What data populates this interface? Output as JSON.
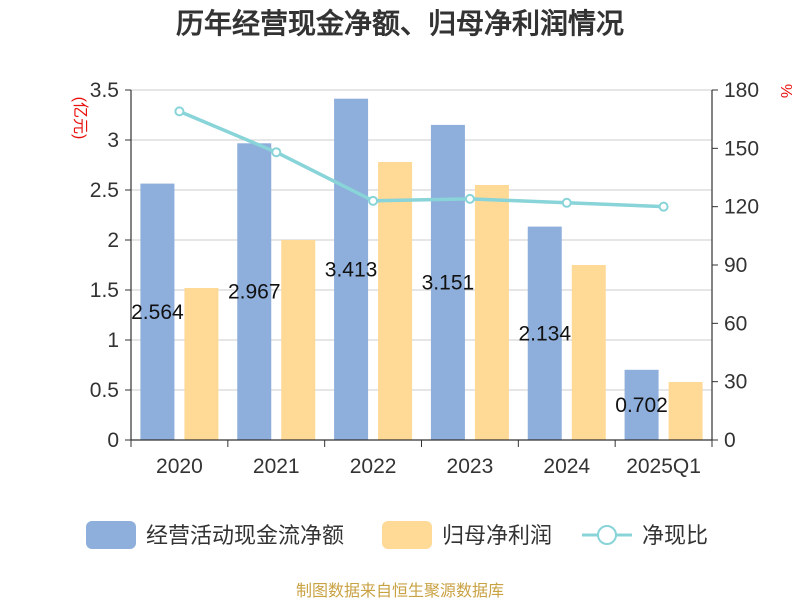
{
  "chart_data": {
    "type": "bar",
    "title": "历年经营现金净额、归母净利润情况",
    "categories": [
      "2020",
      "2021",
      "2022",
      "2023",
      "2024",
      "2025Q1"
    ],
    "series": [
      {
        "name": "经营活动现金流净额",
        "type": "bar",
        "axis": "left",
        "color": "#8eaedb",
        "values": [
          2.564,
          2.967,
          3.413,
          3.151,
          2.134,
          0.702
        ]
      },
      {
        "name": "归母净利润",
        "type": "bar",
        "axis": "left",
        "color": "#ffd996",
        "values": [
          1.52,
          2.0,
          2.78,
          2.55,
          1.75,
          0.58
        ]
      },
      {
        "name": "净现比",
        "type": "line",
        "axis": "right",
        "color": "#88d4d8",
        "values": [
          169,
          148,
          123,
          124,
          122,
          120
        ]
      }
    ],
    "data_labels": [
      "2.564",
      "2.967",
      "3.413",
      "3.151",
      "2.134",
      "0.702"
    ],
    "y_left": {
      "unit": "(亿元)",
      "ylim": [
        0,
        3.5
      ],
      "ticks": [
        "0",
        "0.5",
        "1",
        "1.5",
        "2",
        "2.5",
        "3",
        "3.5"
      ]
    },
    "y_right": {
      "unit": "%",
      "ylim": [
        0,
        180
      ],
      "ticks": [
        "0",
        "30",
        "60",
        "90",
        "120",
        "150",
        "180"
      ]
    },
    "grid": true,
    "legend_position": "bottom"
  },
  "footer": {
    "source": "制图数据来自恒生聚源数据库"
  }
}
